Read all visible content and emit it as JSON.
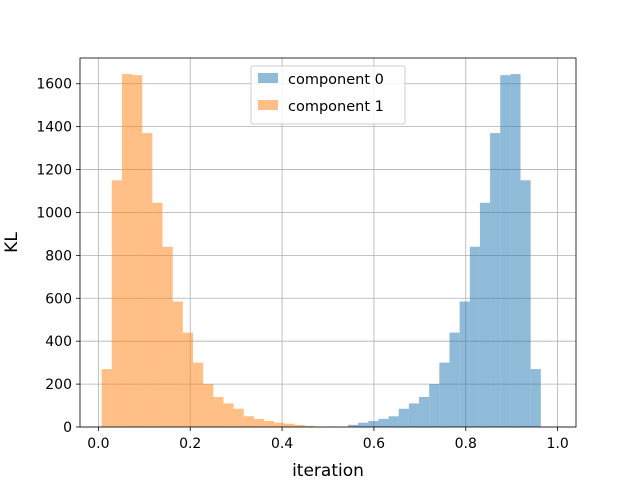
{
  "chart_data": {
    "type": "histogram",
    "xlabel": "iteration",
    "ylabel": "KL",
    "xlim": [
      -0.04,
      1.04
    ],
    "ylim": [
      0,
      1720
    ],
    "xticks": [
      0.0,
      0.2,
      0.4,
      0.6,
      0.8,
      1.0
    ],
    "xtick_labels": [
      "0.0",
      "0.2",
      "0.4",
      "0.6",
      "0.8",
      "1.0"
    ],
    "yticks": [
      0,
      200,
      400,
      600,
      800,
      1000,
      1200,
      1400,
      1600
    ],
    "ytick_labels": [
      "0",
      "200",
      "400",
      "600",
      "800",
      "1000",
      "1200",
      "1400",
      "1600"
    ],
    "grid": true,
    "legend_position": "top-center",
    "series": [
      {
        "name": "component 0",
        "color": "#1f77b4",
        "alpha": 0.5,
        "bin_width": 0.0221,
        "bin_starts": [
          0.5435,
          0.5656,
          0.5877,
          0.6098,
          0.6319,
          0.654,
          0.6761,
          0.6982,
          0.7203,
          0.7424,
          0.7645,
          0.7866,
          0.8087,
          0.8308,
          0.8529,
          0.875,
          0.8971,
          0.9192,
          0.9413,
          0.9634
        ],
        "values": [
          10,
          20,
          28,
          38,
          50,
          85,
          110,
          140,
          200,
          300,
          440,
          585,
          840,
          1045,
          1370,
          1640,
          1645,
          1150,
          270,
          0
        ]
      },
      {
        "name": "component 1",
        "color": "#ff7f0e",
        "alpha": 0.5,
        "bin_width": 0.0221,
        "bin_starts": [
          0.0071,
          0.0292,
          0.0513,
          0.0734,
          0.0955,
          0.1176,
          0.1397,
          0.1618,
          0.1839,
          0.206,
          0.2281,
          0.2502,
          0.2723,
          0.2944,
          0.3165,
          0.3386,
          0.3607,
          0.3828,
          0.4049,
          0.427,
          0.4491,
          0.4712
        ],
        "values": [
          270,
          1150,
          1645,
          1640,
          1370,
          1045,
          840,
          585,
          440,
          300,
          200,
          140,
          110,
          85,
          50,
          38,
          28,
          20,
          15,
          10,
          5,
          2
        ]
      }
    ]
  }
}
